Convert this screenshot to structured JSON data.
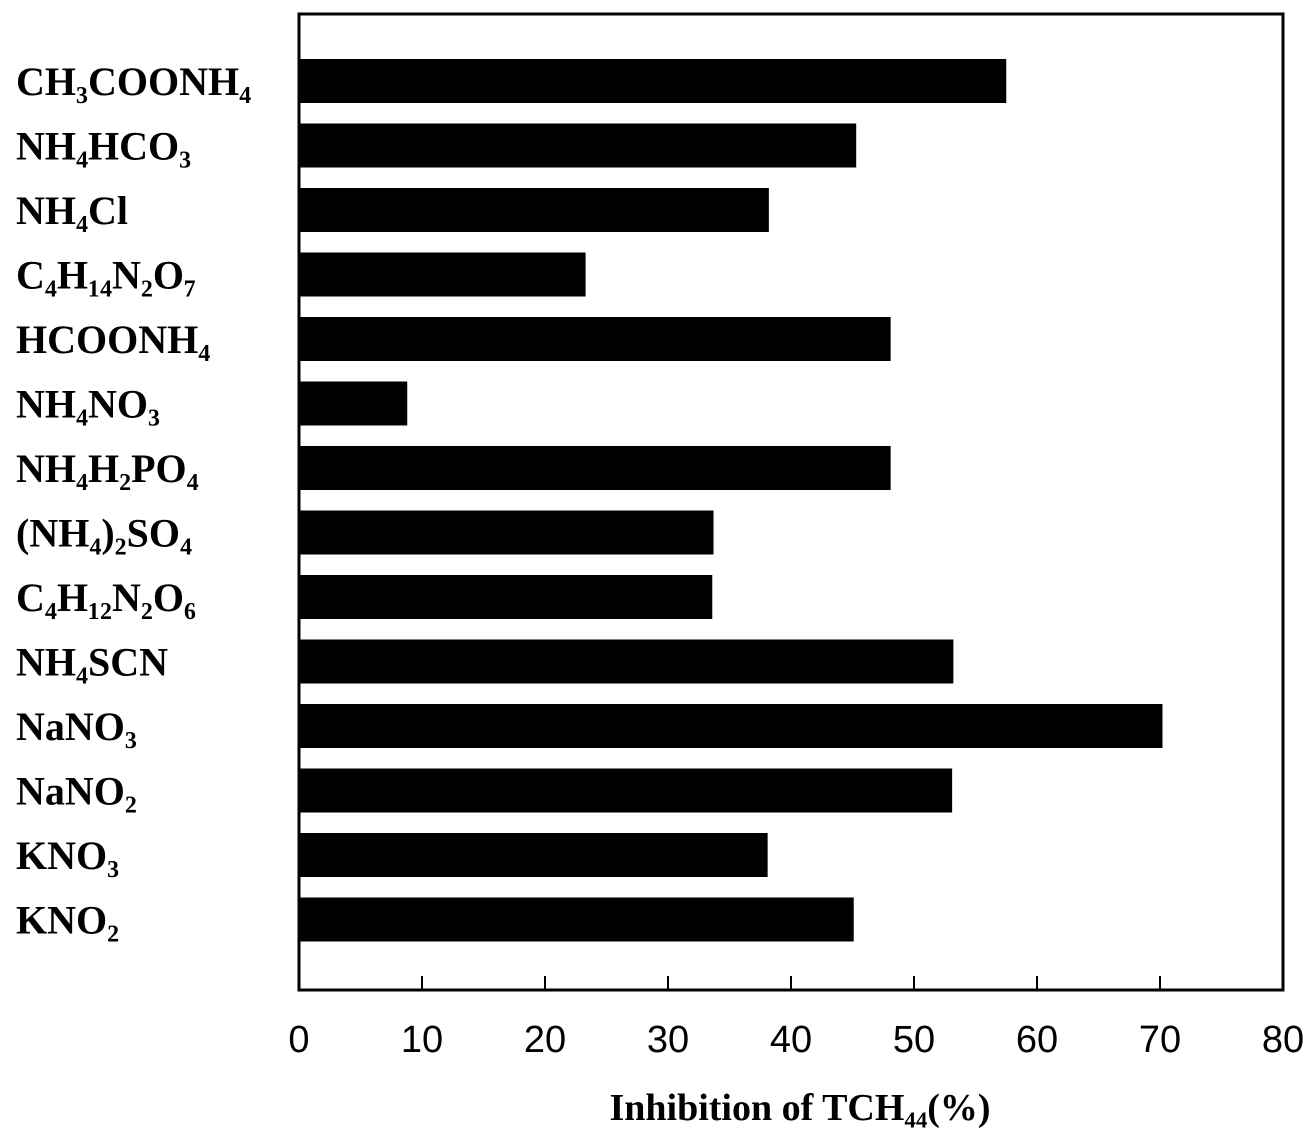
{
  "chart_data": {
    "type": "bar",
    "orientation": "horizontal",
    "categories": [
      "CH₃COONH₄",
      "NH₄HCO₃",
      "NH₄Cl",
      "C₄H₁₄N₂O₇",
      "HCOONH₄",
      "NH₄NO₃",
      "NH₄H₂PO₄",
      "(NH₄)₂SO₄",
      "C₄H₁₂N₂O₆",
      "NH₄SCN",
      "NaNO₃",
      "NaNO₂",
      "KNO₃",
      "KNO₂"
    ],
    "values": [
      57.5,
      45.3,
      38.2,
      23.3,
      48.1,
      8.8,
      48.1,
      33.7,
      33.6,
      53.2,
      70.2,
      53.1,
      38.1,
      45.1
    ],
    "xlabel": "Inhibition of TCH₄₄(%)",
    "xlim": [
      0,
      80
    ],
    "xticks": [
      0,
      10,
      20,
      30,
      40,
      50,
      60,
      70,
      80
    ],
    "grid": false,
    "legend": "none",
    "bar_color": "#000000"
  }
}
